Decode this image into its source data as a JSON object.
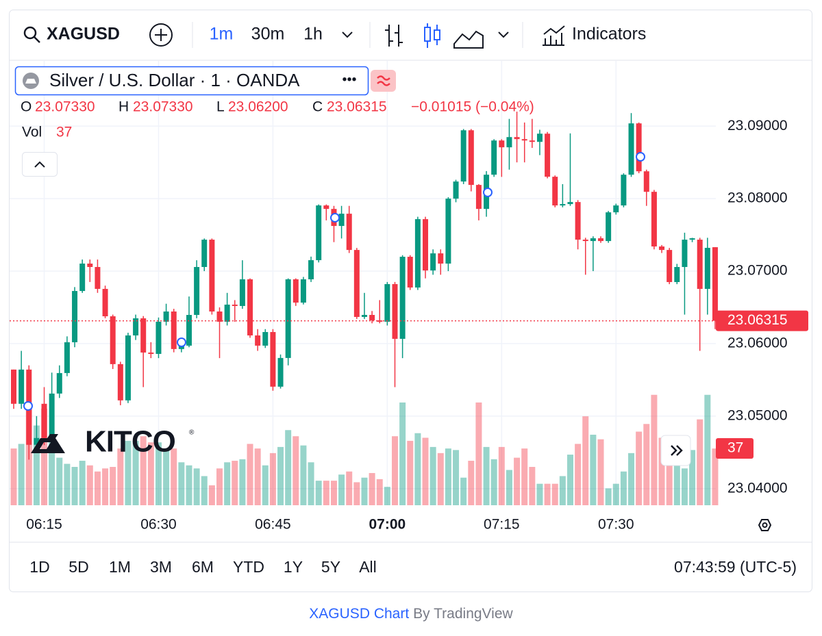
{
  "toolbar": {
    "symbol": "XAGUSD",
    "intervals": [
      "1m",
      "30m",
      "1h"
    ],
    "indicators": "Indicators"
  },
  "legend": {
    "title": "Silver / U.S. Dollar · 1 · OANDA",
    "o": "O",
    "h": "H",
    "l": "L",
    "c": "C",
    "open": "23.07330",
    "high": "23.07330",
    "low": "23.06200",
    "close": "23.06315",
    "change": "−0.01015 (−0.04%)",
    "vol": "Vol"
  },
  "watermark": {
    "name": "KITCO",
    "mark": "®"
  },
  "chart_data": {
    "type": "candlestick",
    "up_color": "#089981",
    "down_color": "#f23645",
    "grid": true,
    "ylim": [
      23.0378,
      23.0989
    ],
    "yticks": [
      {
        "value": 23.04,
        "label": "23.04000"
      },
      {
        "value": 23.05,
        "label": "23.05000"
      },
      {
        "value": 23.06,
        "label": "23.06000"
      },
      {
        "value": 23.07,
        "label": "23.07000"
      },
      {
        "value": 23.08,
        "label": "23.08000"
      },
      {
        "value": 23.09,
        "label": "23.09000"
      }
    ],
    "categories": [
      null,
      null,
      null,
      null,
      "06:15",
      null,
      null,
      null,
      null,
      null,
      null,
      null,
      null,
      null,
      null,
      null,
      null,
      null,
      null,
      "06:30",
      null,
      null,
      null,
      null,
      null,
      null,
      null,
      null,
      null,
      null,
      null,
      null,
      null,
      null,
      "06:45",
      null,
      null,
      null,
      null,
      null,
      null,
      null,
      null,
      null,
      null,
      null,
      null,
      null,
      null,
      "07:00",
      null,
      null,
      null,
      null,
      null,
      null,
      null,
      null,
      null,
      null,
      null,
      null,
      null,
      null,
      "07:15",
      null,
      null,
      null,
      null,
      null,
      null,
      null,
      null,
      null,
      null,
      null,
      null,
      null,
      null,
      "07:30",
      null,
      null,
      null,
      null,
      null,
      null,
      null,
      null,
      null,
      null,
      null,
      null,
      null
    ],
    "open": [
      23.05642,
      23.0517,
      23.05642,
      23.04604,
      23.0517,
      23.04698,
      23.05311,
      23.05594,
      23.06019,
      23.06726,
      23.07104,
      23.07057,
      23.06755,
      23.06377,
      23.05717,
      23.05217,
      23.06113,
      23.06349,
      23.05877,
      23.05858,
      23.06302,
      23.06443,
      23.05925,
      23.05972,
      23.06396,
      23.07057,
      23.07434,
      23.06443,
      23.06302,
      23.06538,
      23.06519,
      23.06887,
      23.06113,
      23.05972,
      23.0616,
      23.05406,
      23.05802,
      23.06887,
      23.06566,
      23.06887,
      23.07151,
      23.07906,
      23.07858,
      23.07623,
      23.07792,
      23.07292,
      23.06368,
      23.06396,
      23.06321,
      23.06302,
      23.06821,
      23.06066,
      23.07198,
      23.06774,
      23.07717,
      23.07009,
      23.07245,
      23.07104,
      23.08,
      23.08236,
      23.08943,
      23.08189,
      23.07858,
      23.0833,
      23.08802,
      23.08708,
      23.08849,
      23.08821,
      23.08802,
      23.08783,
      23.08896,
      23.08302,
      23.07906,
      23.07925,
      23.07953,
      23.07434,
      23.07415,
      23.07453,
      23.07415,
      23.07811,
      23.07906,
      23.0833,
      23.09038,
      23.08377,
      23.08094,
      23.0734,
      23.07292,
      23.06849,
      23.07057,
      23.07434,
      23.07434,
      23.06755,
      23.0733
    ],
    "high": [
      23.05642,
      23.059,
      23.057,
      23.05,
      23.054,
      23.056,
      23.057,
      23.061,
      23.0678,
      23.0716,
      23.0716,
      23.0716,
      23.068,
      23.064,
      23.0575,
      23.0615,
      23.064,
      23.0638,
      23.0602,
      23.0636,
      23.0655,
      23.0648,
      23.0605,
      23.0665,
      23.0715,
      23.0745,
      23.0745,
      23.065,
      23.067,
      23.066,
      23.0715,
      23.069,
      23.062,
      23.062,
      23.062,
      23.0585,
      23.069,
      23.069,
      23.0692,
      23.072,
      23.0792,
      23.0792,
      23.079,
      23.079,
      23.079,
      23.0732,
      23.067,
      23.0645,
      23.066,
      23.0685,
      23.0685,
      23.0722,
      23.0722,
      23.0775,
      23.0775,
      23.073,
      23.073,
      23.0802,
      23.0826,
      23.0896,
      23.0896,
      23.082,
      23.0838,
      23.0882,
      23.0882,
      23.091,
      23.092,
      23.0905,
      23.091,
      23.0895,
      23.0892,
      23.0832,
      23.082,
      23.089,
      23.0798,
      23.0746,
      23.0748,
      23.0748,
      23.0783,
      23.0793,
      23.0835,
      23.0918,
      23.0905,
      23.084,
      23.0812,
      23.0736,
      23.0732,
      23.071,
      23.0753,
      23.0746,
      23.0746,
      23.0746,
      23.0733
    ],
    "low": [
      23.051,
      23.051,
      23.044,
      23.045,
      23.046,
      23.0465,
      23.0525,
      23.0555,
      23.0595,
      23.067,
      23.0685,
      23.067,
      23.0635,
      23.0565,
      23.0515,
      23.0518,
      23.0605,
      23.054,
      23.058,
      23.058,
      23.0625,
      23.0588,
      23.0588,
      23.0595,
      23.0635,
      23.07,
      23.064,
      23.058,
      23.0625,
      23.063,
      23.0648,
      23.0608,
      23.059,
      23.0594,
      23.0535,
      23.0538,
      23.057,
      23.0652,
      23.0654,
      23.0685,
      23.0712,
      23.077,
      23.074,
      23.0745,
      23.0725,
      23.0634,
      23.0634,
      23.0628,
      23.0628,
      23.0625,
      23.054,
      23.058,
      23.0674,
      23.0674,
      23.069,
      23.0695,
      23.0695,
      23.07,
      23.0795,
      23.082,
      23.081,
      23.077,
      23.0775,
      23.083,
      23.083,
      23.084,
      23.085,
      23.085,
      23.087,
      23.086,
      23.0828,
      23.0788,
      23.0788,
      23.079,
      23.073,
      23.0695,
      23.07,
      23.0739,
      23.0739,
      23.0778,
      23.0788,
      23.083,
      23.0835,
      23.079,
      23.073,
      23.0725,
      23.0682,
      23.0682,
      23.064,
      23.074,
      23.059,
      23.064,
      23.062
    ],
    "close": [
      23.0517,
      23.05642,
      23.04604,
      23.04698,
      23.04698,
      23.05311,
      23.05594,
      23.06019,
      23.06726,
      23.07104,
      23.07057,
      23.06755,
      23.06377,
      23.05717,
      23.05217,
      23.06113,
      23.06349,
      23.05877,
      23.05858,
      23.06302,
      23.06443,
      23.05925,
      23.05972,
      23.06396,
      23.07057,
      23.07434,
      23.06443,
      23.06302,
      23.06538,
      23.06519,
      23.06887,
      23.06113,
      23.05972,
      23.0616,
      23.05406,
      23.05802,
      23.06887,
      23.06566,
      23.06887,
      23.07151,
      23.07906,
      23.07858,
      23.07623,
      23.07792,
      23.07292,
      23.06368,
      23.06396,
      23.06321,
      23.06302,
      23.06821,
      23.06066,
      23.07198,
      23.06774,
      23.07717,
      23.07009,
      23.07245,
      23.07104,
      23.08,
      23.08236,
      23.08943,
      23.08189,
      23.07858,
      23.0833,
      23.08802,
      23.08708,
      23.08849,
      23.08821,
      23.08802,
      23.08783,
      23.08896,
      23.08302,
      23.07906,
      23.07925,
      23.07953,
      23.07434,
      23.07415,
      23.07453,
      23.07415,
      23.07811,
      23.07906,
      23.0833,
      23.09038,
      23.08377,
      23.08094,
      23.0734,
      23.07292,
      23.06849,
      23.07057,
      23.07434,
      23.07453,
      23.06755,
      23.07321,
      23.06315
    ],
    "volume": [
      37,
      40,
      63,
      52,
      63,
      42,
      31,
      27,
      25,
      29,
      26,
      22,
      24,
      25,
      37,
      42,
      42,
      45,
      41,
      41,
      36,
      37,
      28,
      26,
      24,
      19,
      13,
      24,
      28,
      29,
      30,
      40,
      37,
      26,
      34,
      38,
      49,
      45,
      39,
      28,
      16,
      16,
      16,
      20,
      22,
      15,
      18,
      21,
      17,
      12,
      45,
      67,
      42,
      47,
      44,
      38,
      34,
      37,
      36,
      18,
      29,
      67,
      38,
      30,
      38,
      23,
      31,
      37,
      25,
      14,
      14,
      14,
      19,
      33,
      40,
      58,
      46,
      43,
      11,
      14,
      22,
      34,
      48,
      53,
      72,
      44,
      42,
      34,
      24,
      36,
      56,
      72,
      37
    ]
  },
  "ranges": [
    "1D",
    "5D",
    "1M",
    "3M",
    "6M",
    "YTD",
    "1Y",
    "5Y",
    "All"
  ],
  "clock": "07:43:59 (UTC-5)",
  "footer": {
    "link": "XAGUSD Chart",
    "by": "By TradingView"
  }
}
